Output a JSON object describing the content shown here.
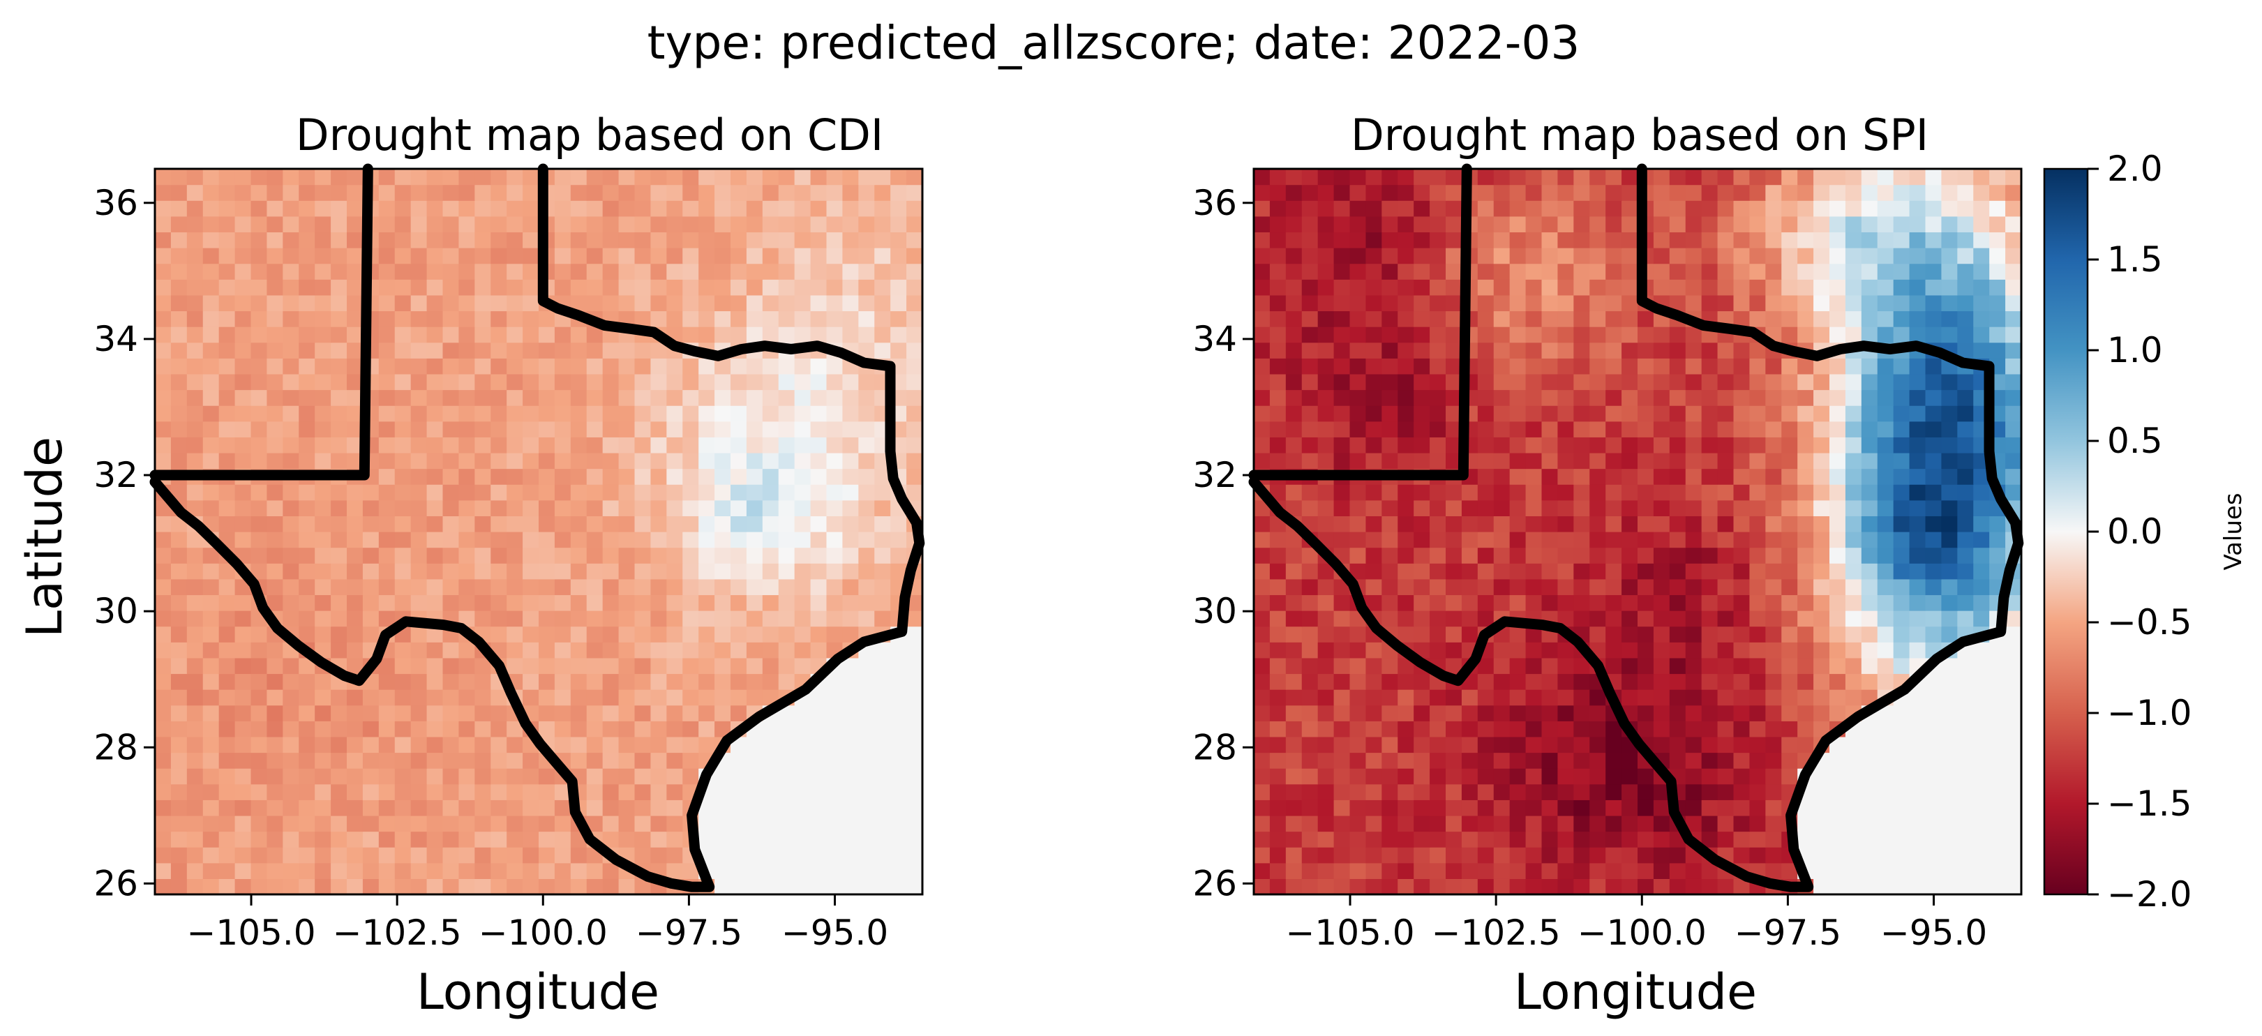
{
  "figure": {
    "suptitle": "type: predicted_allzscore; date: 2022-03"
  },
  "panels": [
    {
      "title": "Drought map based on CDI",
      "xlabel": "Longitude",
      "ylabel": "Latitude"
    },
    {
      "title": "Drought map based on SPI",
      "xlabel": "Longitude",
      "ylabel": ""
    }
  ],
  "colorbar": {
    "label": "Values",
    "colormap": "RdBu",
    "range": [
      -2.0,
      2.0
    ],
    "ticks": [
      "2.0",
      "1.5",
      "1.0",
      "0.5",
      "0.0",
      "−0.5",
      "−1.0",
      "−1.5",
      "−2.0"
    ],
    "colors": {
      "low": "#67001f",
      "mid": "#f7f7f7",
      "high": "#053061",
      "nodata": "#f4f4f4"
    }
  },
  "axes": {
    "xlim": [
      -106.65,
      -93.5
    ],
    "ylim": [
      25.84,
      36.5
    ],
    "xticks": [
      -105.0,
      -102.5,
      -100.0,
      -97.5,
      -95.0
    ],
    "xtick_labels": [
      "−105.0",
      "−102.5",
      "−100.0",
      "−97.5",
      "−95.0"
    ],
    "yticks": [
      26,
      28,
      30,
      32,
      34,
      36
    ],
    "ytick_labels": [
      "26",
      "28",
      "30",
      "32",
      "34",
      "36"
    ]
  },
  "chart_data": [
    {
      "type": "heatmap",
      "title": "Drought map based on CDI",
      "xlabel": "Longitude",
      "ylabel": "Latitude",
      "variable": "CDI predicted z-score",
      "value_range": [
        -2.0,
        2.0
      ],
      "xlim": [
        -106.65,
        -93.5
      ],
      "ylim": [
        25.84,
        36.5
      ],
      "regions": [
        {
          "region": "west Texas / New Mexico border area",
          "approx_value": -0.6
        },
        {
          "region": "Texas panhandle",
          "approx_value": -0.5
        },
        {
          "region": "central Texas",
          "approx_value": -0.5
        },
        {
          "region": "south Texas",
          "approx_value": -0.6
        },
        {
          "region": "southern Oklahoma",
          "approx_value": -0.4
        },
        {
          "region": "northeast Texas",
          "approx_value": 0.05
        },
        {
          "region": "east Texas near lon -96.5, lat 31.5",
          "approx_value": 0.4
        },
        {
          "region": "Gulf of Mexico",
          "approx_value": null
        }
      ]
    },
    {
      "type": "heatmap",
      "title": "Drought map based on SPI",
      "xlabel": "Longitude",
      "ylabel": "",
      "variable": "SPI predicted z-score",
      "value_range": [
        -2.0,
        2.0
      ],
      "xlim": [
        -106.65,
        -93.5
      ],
      "ylim": [
        25.84,
        36.5
      ],
      "regions": [
        {
          "region": "New Mexico / far west Texas",
          "approx_value": -1.6
        },
        {
          "region": "Texas panhandle",
          "approx_value": -1.2
        },
        {
          "region": "south-central Texas (lon -101 to -98, lat 27-29.5)",
          "approx_value": -1.95
        },
        {
          "region": "central Texas",
          "approx_value": -1.4
        },
        {
          "region": "southern Oklahoma",
          "approx_value": -0.8
        },
        {
          "region": "northeast Texas / east Oklahoma",
          "approx_value": 1.2
        },
        {
          "region": "east Texas near lon -95.5, lat 31",
          "approx_value": 1.6
        },
        {
          "region": "Gulf of Mexico",
          "approx_value": null
        }
      ]
    }
  ]
}
